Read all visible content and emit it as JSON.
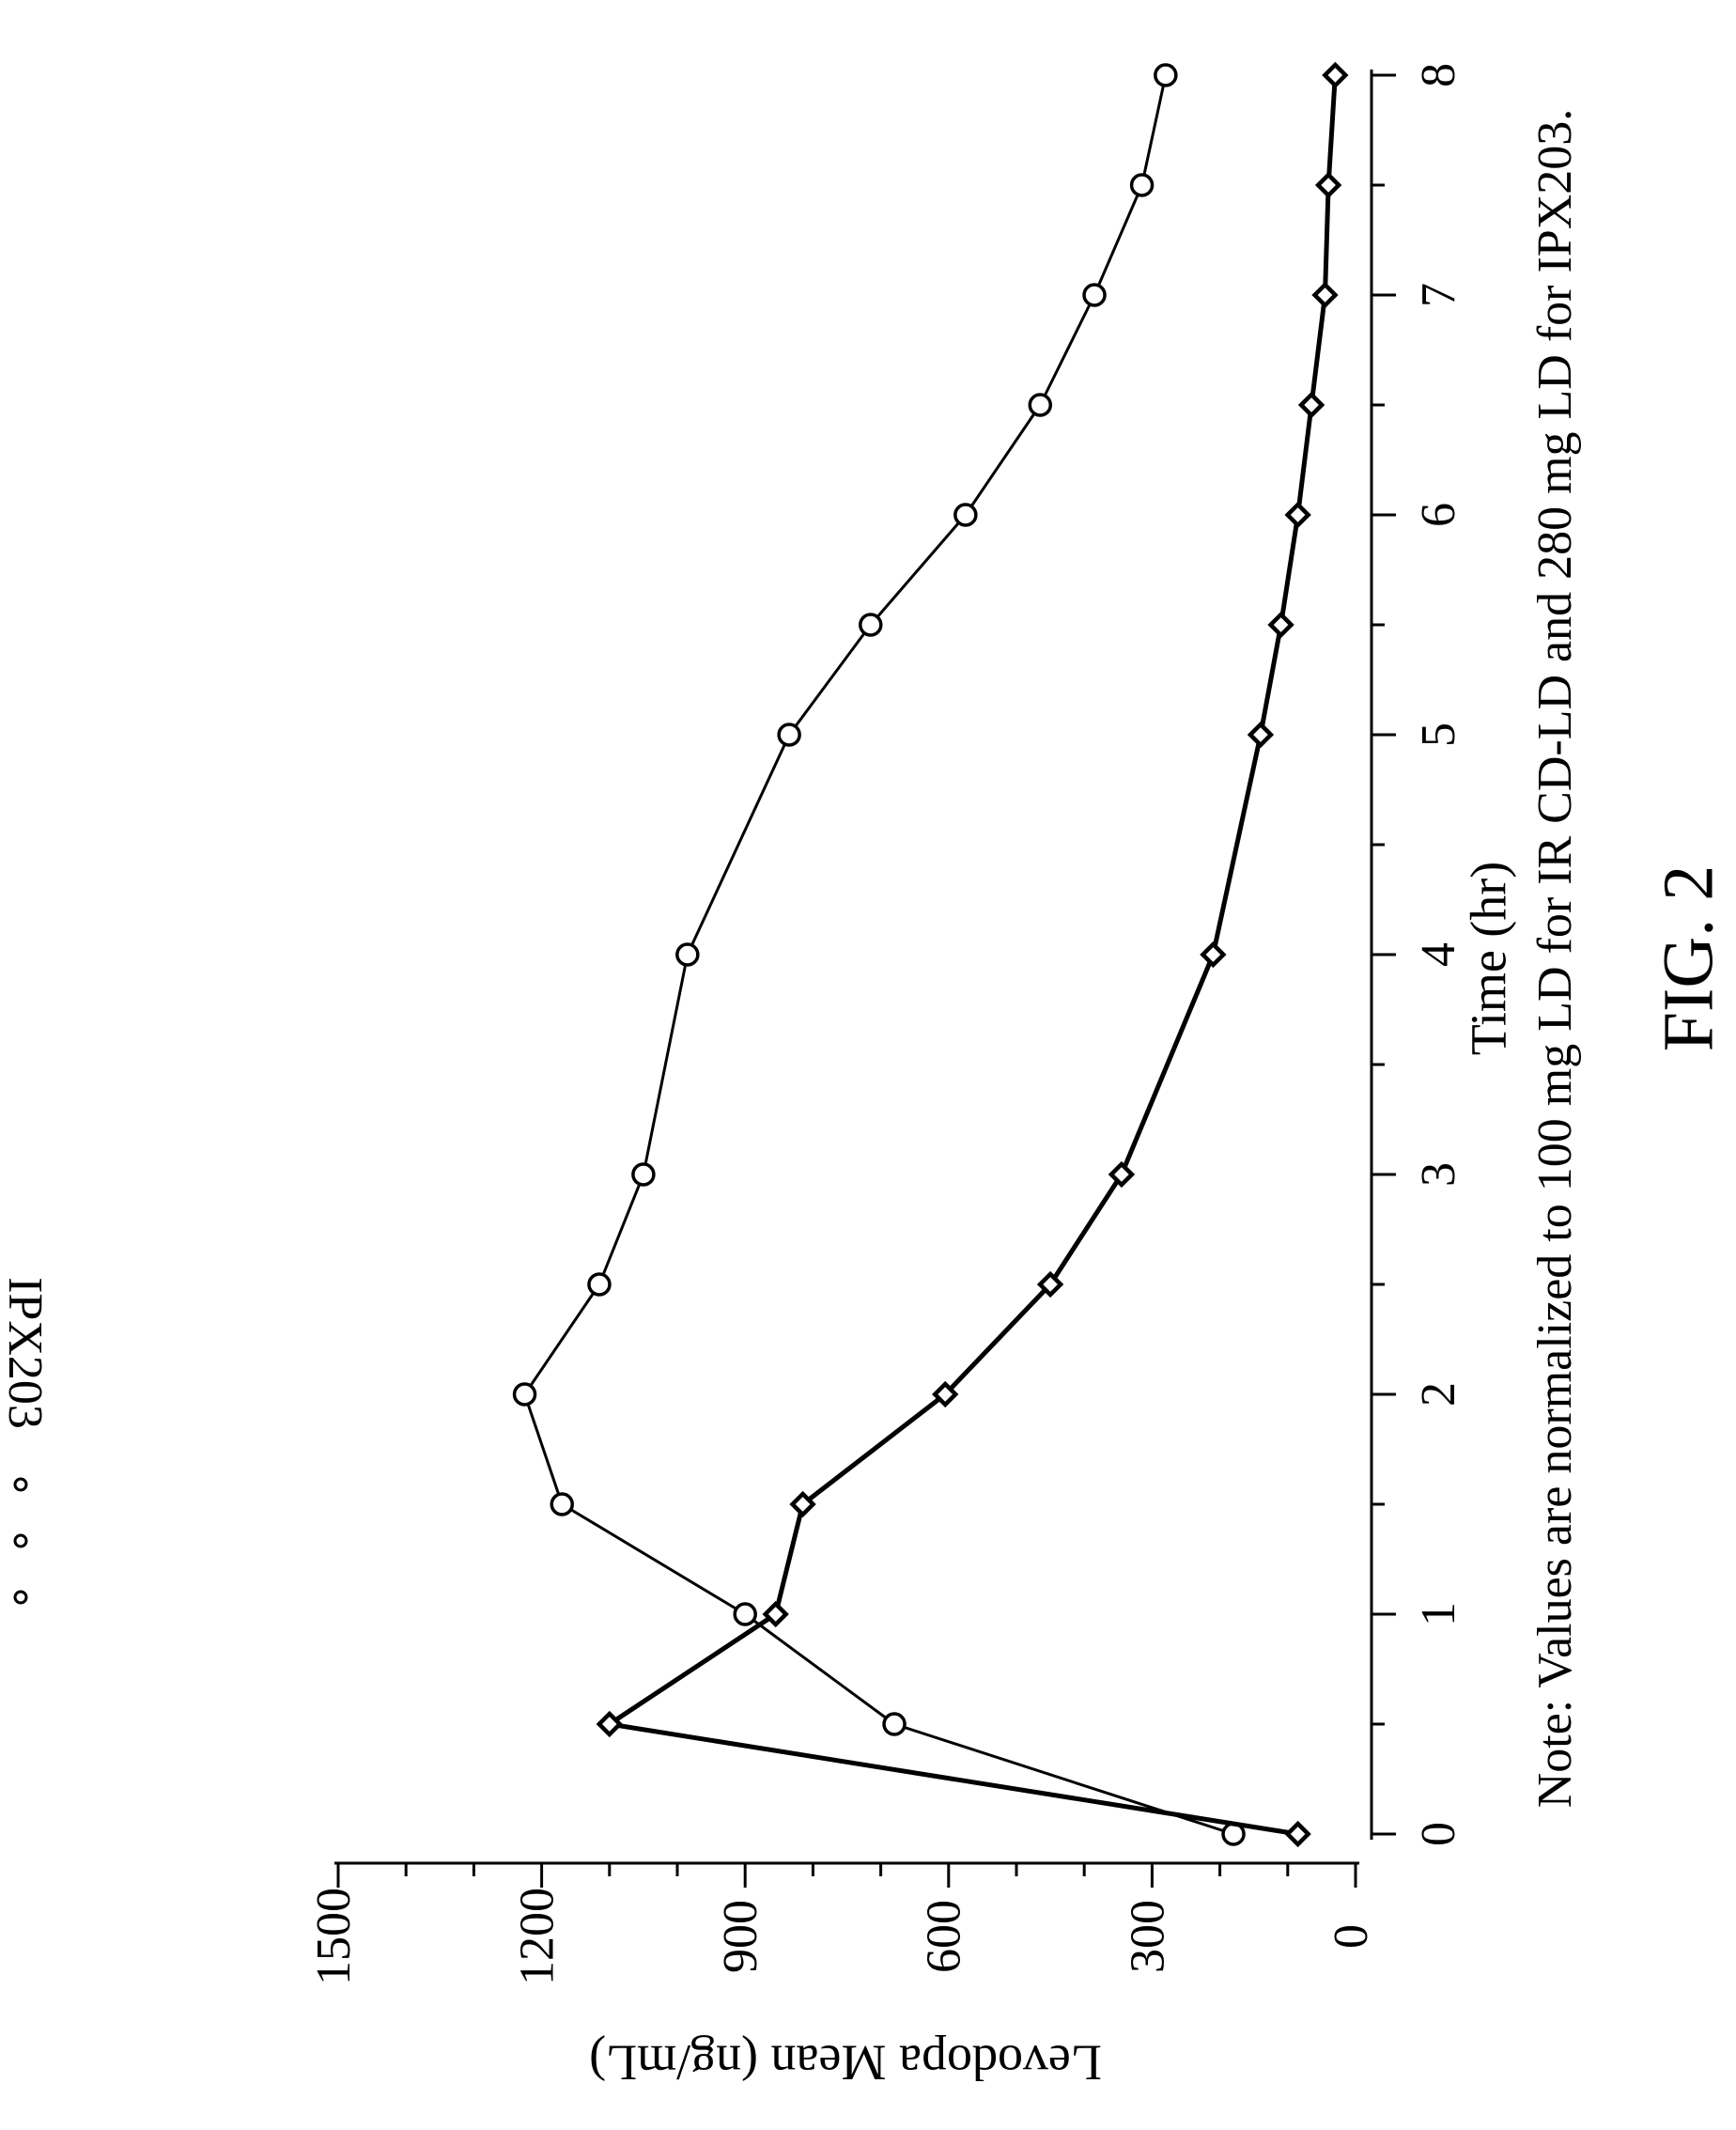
{
  "figure_label": "FIG. 2",
  "note": "Note: Values are normalized to 100 mg LD for IR CD-LD and 280 mg LD for IPX203.",
  "legend_fragment": "IPX203",
  "chart_data": {
    "type": "line",
    "title": "",
    "xlabel": "Time (hr)",
    "ylabel": "Levodopa Mean (ng/mL)",
    "xlim": [
      0,
      8
    ],
    "ylim": [
      0,
      1500
    ],
    "x_ticks": [
      0,
      1,
      2,
      3,
      4,
      5,
      6,
      7,
      8
    ],
    "y_ticks": [
      0,
      300,
      600,
      900,
      1200,
      1500
    ],
    "x_minor_step": 0.5,
    "y_minor_step": 100,
    "orientation": "rotated 90 degrees counter-clockwise on the page",
    "grid": false,
    "series": [
      {
        "name": "IPX203",
        "marker": "circle",
        "x": [
          0,
          0.5,
          1,
          1.5,
          2,
          2.5,
          3,
          4,
          5,
          5.5,
          6,
          6.5,
          7,
          7.5,
          8
        ],
        "values": [
          180,
          680,
          900,
          1170,
          1225,
          1115,
          1050,
          985,
          835,
          715,
          575,
          465,
          385,
          315,
          280
        ]
      },
      {
        "name": "",
        "marker": "diamond",
        "x": [
          0,
          0.5,
          1,
          1.5,
          2,
          2.5,
          3,
          4,
          5,
          5.5,
          6,
          6.5,
          7,
          7.5,
          8
        ],
        "values": [
          85,
          1100,
          855,
          815,
          605,
          450,
          345,
          210,
          140,
          110,
          85,
          65,
          45,
          40,
          30
        ]
      }
    ]
  }
}
